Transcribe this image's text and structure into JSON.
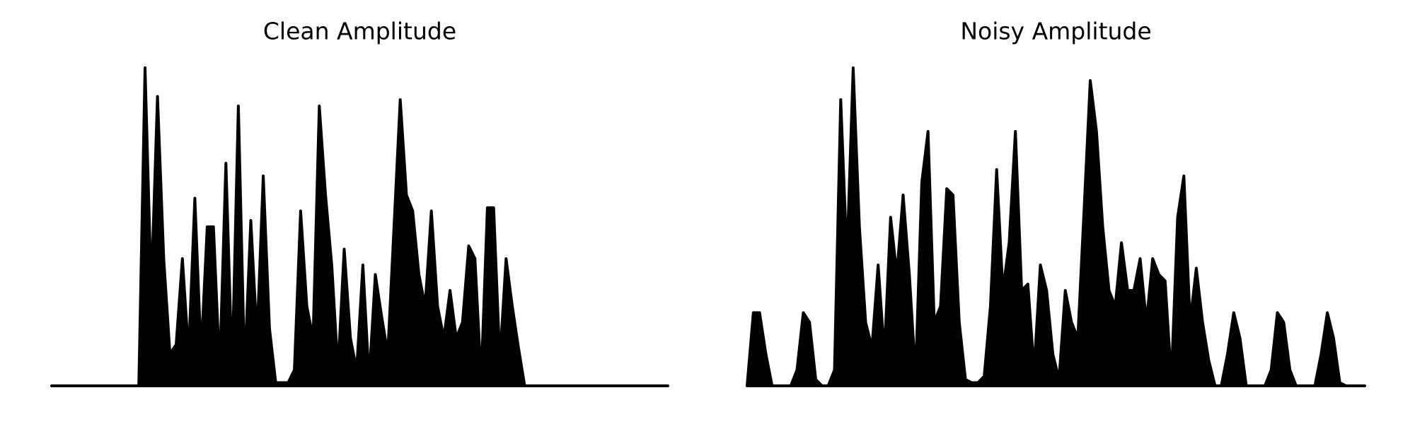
{
  "chart_data": [
    {
      "type": "area",
      "title": "Clean Amplitude",
      "color": "#000000",
      "ylim": [
        0,
        1
      ],
      "values": [
        0,
        0,
        0,
        0,
        0,
        0,
        0,
        0,
        0,
        0,
        0,
        0,
        0,
        0,
        0,
        1.0,
        0.3,
        0.91,
        0.4,
        0.1,
        0.13,
        0.4,
        0.1,
        0.59,
        0.1,
        0.5,
        0.5,
        0.05,
        0.7,
        0.05,
        0.88,
        0.05,
        0.52,
        0.15,
        0.66,
        0.18,
        0.01,
        0.01,
        0.01,
        0.05,
        0.55,
        0.25,
        0.15,
        0.88,
        0.6,
        0.38,
        0.05,
        0.43,
        0.15,
        0.05,
        0.38,
        0.02,
        0.35,
        0.22,
        0.1,
        0.5,
        0.9,
        0.6,
        0.55,
        0.35,
        0.25,
        0.55,
        0.25,
        0.15,
        0.3,
        0.15,
        0.2,
        0.44,
        0.4,
        0.02,
        0.56,
        0.56,
        0.08,
        0.4,
        0.25,
        0.12,
        0,
        0,
        0,
        0,
        0,
        0,
        0,
        0,
        0,
        0,
        0,
        0,
        0,
        0,
        0,
        0,
        0,
        0,
        0,
        0,
        0,
        0,
        0,
        0
      ]
    },
    {
      "type": "area",
      "title": "Noisy Amplitude",
      "color": "#000000",
      "ylim": [
        0,
        1
      ],
      "values": [
        0,
        0.23,
        0.23,
        0.1,
        0,
        0,
        0,
        0,
        0.05,
        0.23,
        0.2,
        0.02,
        0,
        0,
        0.05,
        0.9,
        0.4,
        1.0,
        0.5,
        0.2,
        0.12,
        0.38,
        0.1,
        0.53,
        0.35,
        0.6,
        0.35,
        0.03,
        0.64,
        0.8,
        0.2,
        0.25,
        0.62,
        0.6,
        0.2,
        0.02,
        0.01,
        0.01,
        0.03,
        0.25,
        0.68,
        0.3,
        0.45,
        0.8,
        0.3,
        0.32,
        0.05,
        0.38,
        0.3,
        0.1,
        0.02,
        0.3,
        0.2,
        0.15,
        0.55,
        0.96,
        0.8,
        0.5,
        0.3,
        0.25,
        0.45,
        0.3,
        0.3,
        0.4,
        0.2,
        0.4,
        0.35,
        0.33,
        0.02,
        0.53,
        0.66,
        0.2,
        0.37,
        0.2,
        0.08,
        0,
        0,
        0.1,
        0.23,
        0.15,
        0,
        0,
        0,
        0,
        0.05,
        0.23,
        0.2,
        0.05,
        0,
        0,
        0,
        0,
        0.1,
        0.23,
        0.15,
        0.01,
        0,
        0,
        0,
        0
      ]
    }
  ]
}
